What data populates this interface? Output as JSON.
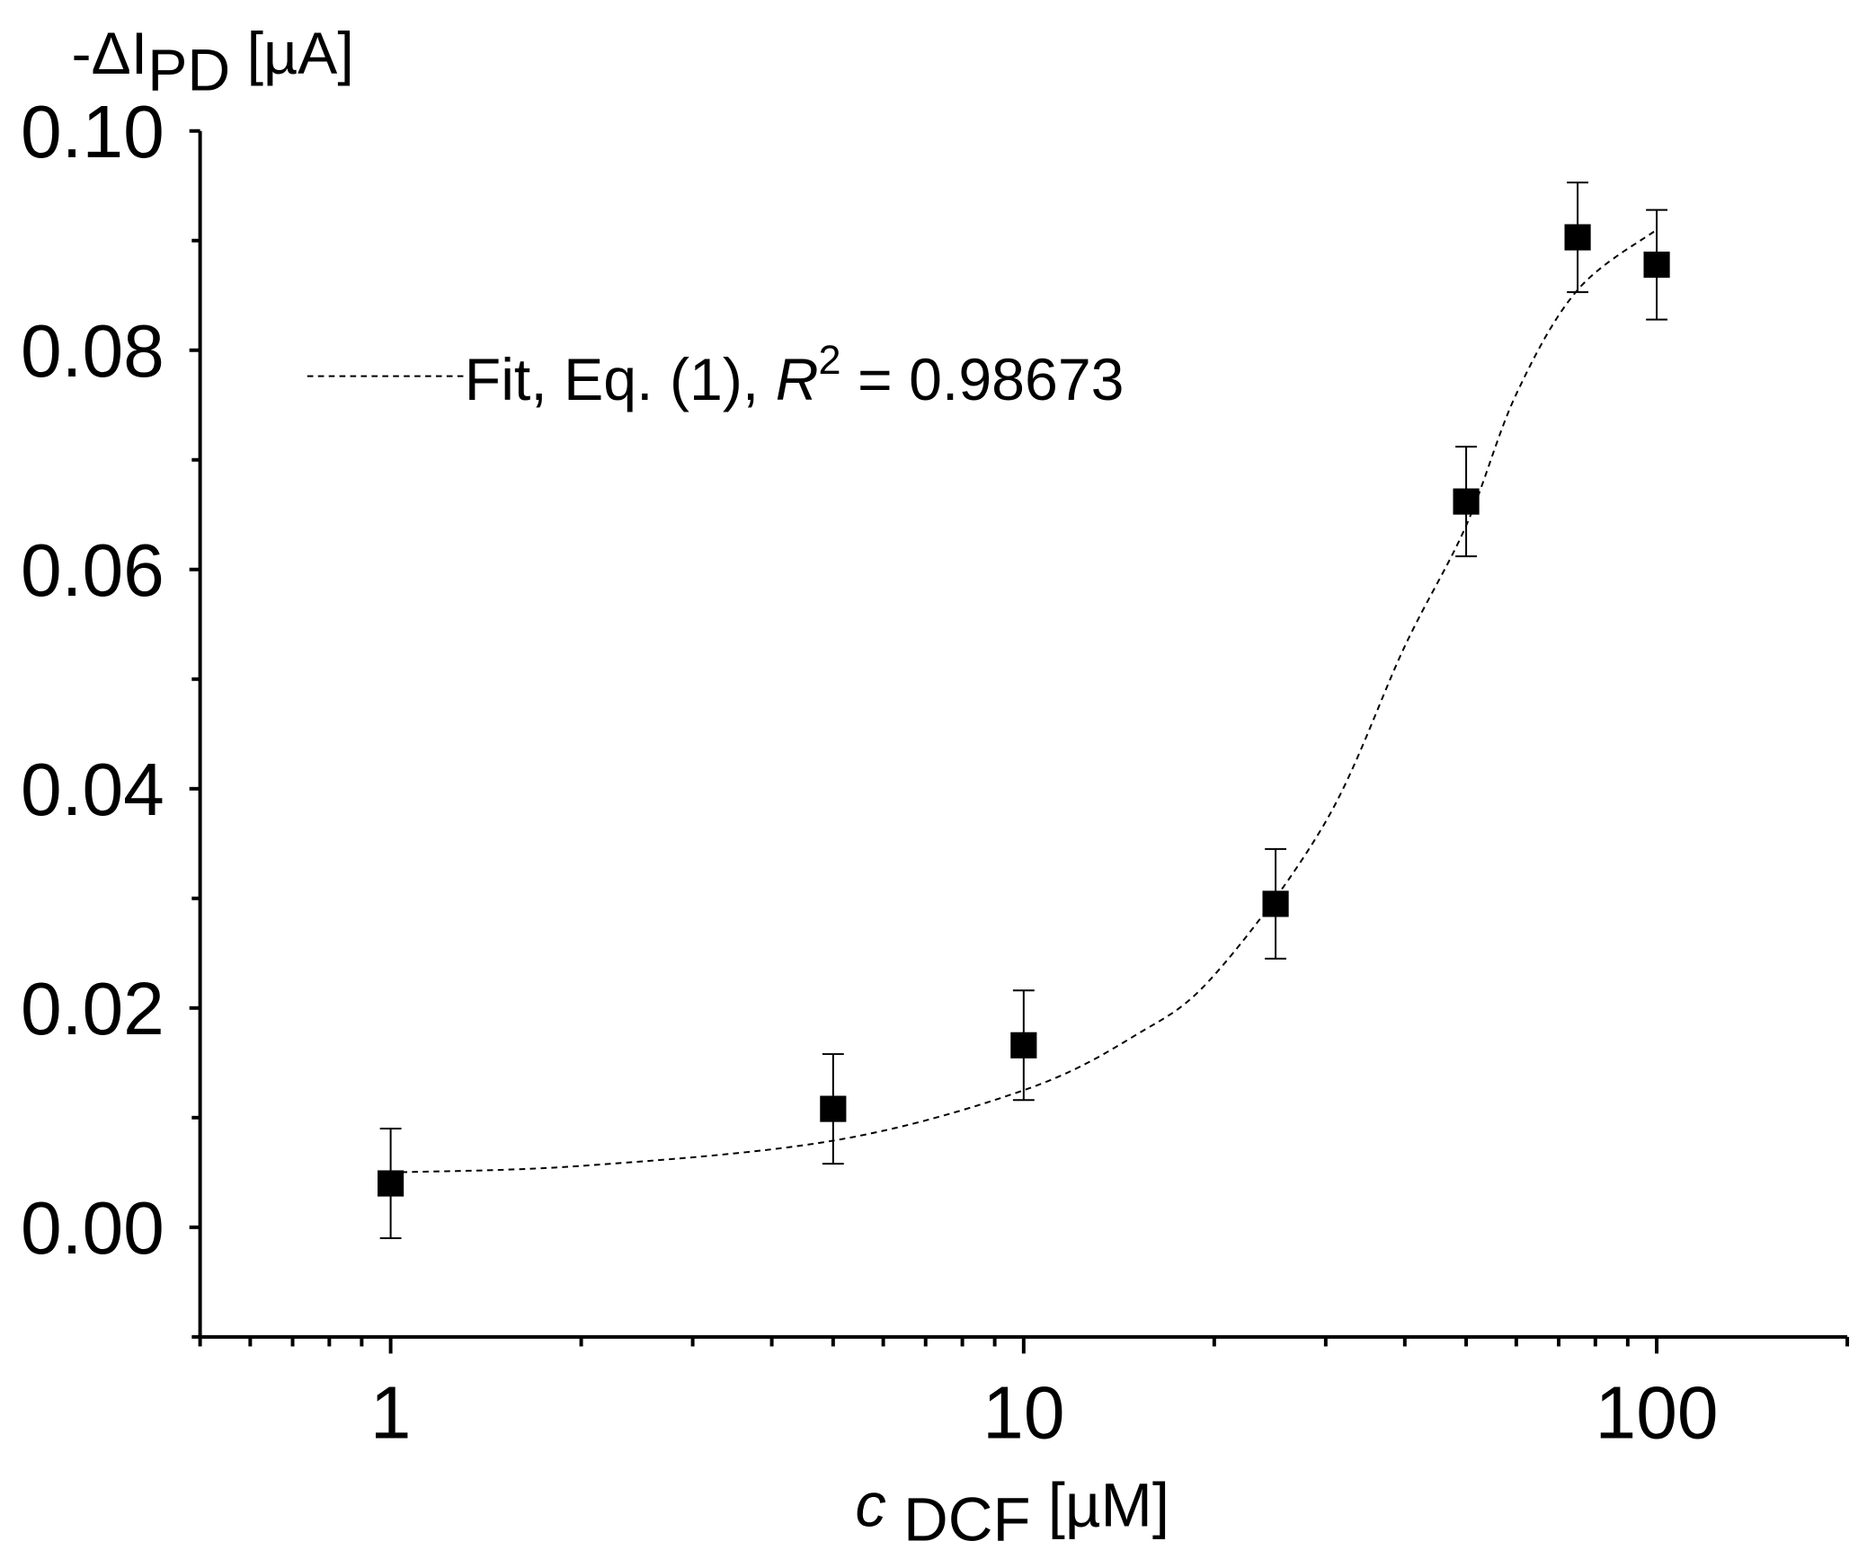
{
  "chart_data": {
    "type": "scatter",
    "x_scale": "log",
    "xlim": [
      0.5,
      200
    ],
    "ylim": [
      -0.01,
      0.1
    ],
    "grid": false,
    "xlabel": {
      "main": "c",
      "sub": "DCF",
      "unit": " [µM]"
    },
    "ylabel": {
      "prefix": "-ΔI",
      "sub": "PD",
      "unit": " [µA]"
    },
    "x_ticks": [
      1,
      10,
      100
    ],
    "x_tick_labels": [
      "1",
      "10",
      "100"
    ],
    "y_ticks": [
      0.0,
      0.02,
      0.04,
      0.06,
      0.08,
      0.1
    ],
    "y_tick_labels": [
      "0.00",
      "0.02",
      "0.04",
      "0.06",
      "0.08",
      "0.10"
    ],
    "legend": {
      "placement": "top-left",
      "text": "Fit, Eq. (1), ",
      "r": "R",
      "sup": "2",
      "value": " = 0.98673"
    },
    "series": [
      {
        "marker": "square",
        "color": "#000000",
        "x": [
          1,
          5,
          10,
          25,
          50,
          75,
          100
        ],
        "y": [
          0.004,
          0.0108,
          0.0166,
          0.0295,
          0.0662,
          0.0903,
          0.0878
        ],
        "error": [
          0.005,
          0.005,
          0.005,
          0.005,
          0.005,
          0.005,
          0.005
        ]
      },
      {
        "type": "line",
        "style": "dashed",
        "color": "#000000",
        "x": [
          1,
          2,
          5,
          10,
          15,
          20,
          30,
          40,
          50,
          60,
          75,
          100
        ],
        "y": [
          0.005,
          0.0056,
          0.0079,
          0.0125,
          0.0175,
          0.023,
          0.037,
          0.053,
          0.064,
          0.076,
          0.0855,
          0.091
        ]
      }
    ]
  }
}
